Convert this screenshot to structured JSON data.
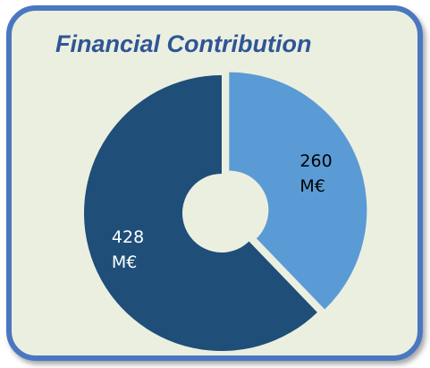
{
  "chart_data": {
    "type": "pie",
    "title": "Financial Contribution",
    "values": [
      260,
      428
    ],
    "value_labels": [
      "260 M€",
      "428 M€"
    ],
    "colors": [
      "#5b9bd5",
      "#1f4e79"
    ],
    "label_colors": [
      "#000000",
      "#ffffff"
    ],
    "donut": true
  }
}
